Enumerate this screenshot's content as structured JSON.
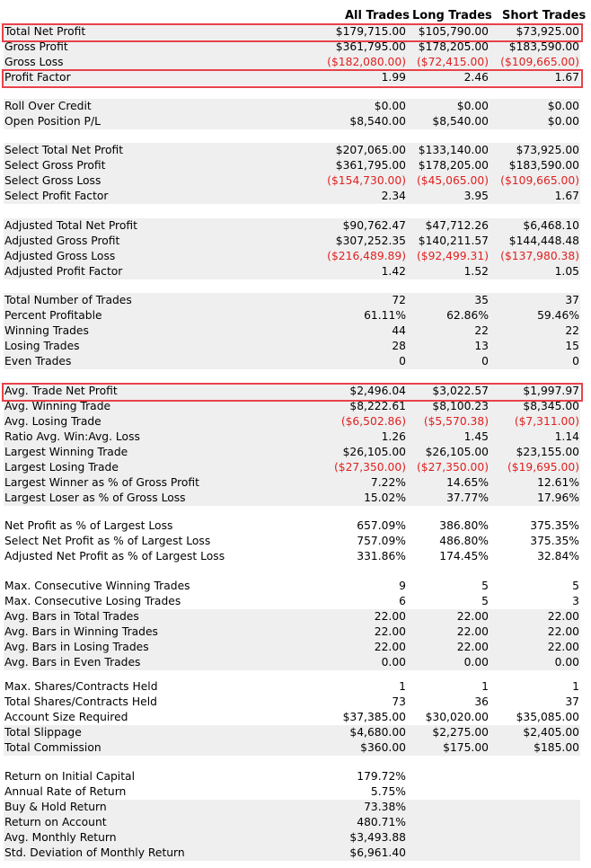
{
  "headers": {
    "all": "All Trades",
    "long": "Long Trades",
    "short": "Short Trades"
  },
  "rows": [
    {
      "label": "Total Net Profit",
      "all": "$179,715.00",
      "long": "$105,790.00",
      "short": "$73,925.00"
    },
    {
      "label": "Gross Profit",
      "all": "$361,795.00",
      "long": "$178,205.00",
      "short": "$183,590.00"
    },
    {
      "label": "Gross Loss",
      "all": "($182,080.00)",
      "long": "($72,415.00)",
      "short": "($109,665.00)"
    },
    {
      "label": "Profit Factor",
      "all": "1.99",
      "long": "2.46",
      "short": "1.67"
    },
    {
      "label": "Roll Over Credit",
      "all": "$0.00",
      "long": "$0.00",
      "short": "$0.00"
    },
    {
      "label": "Open Position P/L",
      "all": "$8,540.00",
      "long": "$8,540.00",
      "short": "$0.00"
    },
    {
      "label": "Select Total Net Profit",
      "all": "$207,065.00",
      "long": "$133,140.00",
      "short": "$73,925.00"
    },
    {
      "label": "Select Gross Profit",
      "all": "$361,795.00",
      "long": "$178,205.00",
      "short": "$183,590.00"
    },
    {
      "label": "Select Gross Loss",
      "all": "($154,730.00)",
      "long": "($45,065.00)",
      "short": "($109,665.00)"
    },
    {
      "label": "Select Profit Factor",
      "all": "2.34",
      "long": "3.95",
      "short": "1.67"
    },
    {
      "label": "Adjusted Total Net Profit",
      "all": "$90,762.47",
      "long": "$47,712.26",
      "short": "$6,468.10"
    },
    {
      "label": "Adjusted Gross Profit",
      "all": "$307,252.35",
      "long": "$140,211.57",
      "short": "$144,448.48"
    },
    {
      "label": "Adjusted Gross Loss",
      "all": "($216,489.89)",
      "long": "($92,499.31)",
      "short": "($137,980.38)"
    },
    {
      "label": "Adjusted Profit Factor",
      "all": "1.42",
      "long": "1.52",
      "short": "1.05"
    },
    {
      "label": "Total Number of Trades",
      "all": "72",
      "long": "35",
      "short": "37"
    },
    {
      "label": "Percent Profitable",
      "all": "61.11%",
      "long": "62.86%",
      "short": "59.46%"
    },
    {
      "label": "Winning Trades",
      "all": "44",
      "long": "22",
      "short": "22"
    },
    {
      "label": "Losing Trades",
      "all": "28",
      "long": "13",
      "short": "15"
    },
    {
      "label": "Even Trades",
      "all": "0",
      "long": "0",
      "short": "0"
    },
    {
      "label": "Avg. Trade Net Profit",
      "all": "$2,496.04",
      "long": "$3,022.57",
      "short": "$1,997.97"
    },
    {
      "label": "Avg. Winning Trade",
      "all": "$8,222.61",
      "long": "$8,100.23",
      "short": "$8,345.00"
    },
    {
      "label": "Avg. Losing Trade",
      "all": "($6,502.86)",
      "long": "($5,570.38)",
      "short": "($7,311.00)"
    },
    {
      "label": "Ratio Avg. Win:Avg. Loss",
      "all": "1.26",
      "long": "1.45",
      "short": "1.14"
    },
    {
      "label": "Largest Winning Trade",
      "all": "$26,105.00",
      "long": "$26,105.00",
      "short": "$23,155.00"
    },
    {
      "label": "Largest Losing Trade",
      "all": "($27,350.00)",
      "long": "($27,350.00)",
      "short": "($19,695.00)"
    },
    {
      "label": "Largest Winner as % of Gross Profit",
      "all": "7.22%",
      "long": "14.65%",
      "short": "12.61%"
    },
    {
      "label": "Largest Loser as % of Gross Loss",
      "all": "15.02%",
      "long": "37.77%",
      "short": "17.96%"
    },
    {
      "label": "Net Profit as % of Largest Loss",
      "all": "657.09%",
      "long": "386.80%",
      "short": "375.35%"
    },
    {
      "label": "Select Net Profit as % of Largest Loss",
      "all": "757.09%",
      "long": "486.80%",
      "short": "375.35%"
    },
    {
      "label": "Adjusted Net Profit as % of Largest Loss",
      "all": "331.86%",
      "long": "174.45%",
      "short": "32.84%"
    },
    {
      "label": "Max. Consecutive Winning Trades",
      "all": "9",
      "long": "5",
      "short": "5"
    },
    {
      "label": "Max. Consecutive Losing Trades",
      "all": "6",
      "long": "5",
      "short": "3"
    },
    {
      "label": "Avg. Bars in Total Trades",
      "all": "22.00",
      "long": "22.00",
      "short": "22.00"
    },
    {
      "label": "Avg. Bars in Winning Trades",
      "all": "22.00",
      "long": "22.00",
      "short": "22.00"
    },
    {
      "label": "Avg. Bars in Losing Trades",
      "all": "22.00",
      "long": "22.00",
      "short": "22.00"
    },
    {
      "label": "Avg. Bars in Even Trades",
      "all": "0.00",
      "long": "0.00",
      "short": "0.00"
    },
    {
      "label": "Max. Shares/Contracts Held",
      "all": "1",
      "long": "1",
      "short": "1"
    },
    {
      "label": "Total Shares/Contracts Held",
      "all": "73",
      "long": "36",
      "short": "37"
    },
    {
      "label": "Account Size Required",
      "all": "$37,385.00",
      "long": "$30,020.00",
      "short": "$35,085.00"
    },
    {
      "label": "Total Slippage",
      "all": "$4,680.00",
      "long": "$2,275.00",
      "short": "$2,405.00"
    },
    {
      "label": "Total Commission",
      "all": "$360.00",
      "long": "$175.00",
      "short": "$185.00"
    },
    {
      "label": "Return on Initial Capital",
      "all": "179.72%",
      "long": "",
      "short": ""
    },
    {
      "label": "Annual Rate of Return",
      "all": "5.75%",
      "long": "",
      "short": ""
    },
    {
      "label": "Buy & Hold Return",
      "all": "73.38%",
      "long": "",
      "short": ""
    },
    {
      "label": "Return on Account",
      "all": "480.71%",
      "long": "",
      "short": ""
    },
    {
      "label": "Avg. Monthly Return",
      "all": "$3,493.88",
      "long": "",
      "short": ""
    },
    {
      "label": "Std. Deviation of Monthly Return",
      "all": "$6,961.40",
      "long": "",
      "short": ""
    }
  ],
  "colors": {
    "negative": "#e02020",
    "highlight": "#e8424a",
    "shade": "#efefef"
  }
}
